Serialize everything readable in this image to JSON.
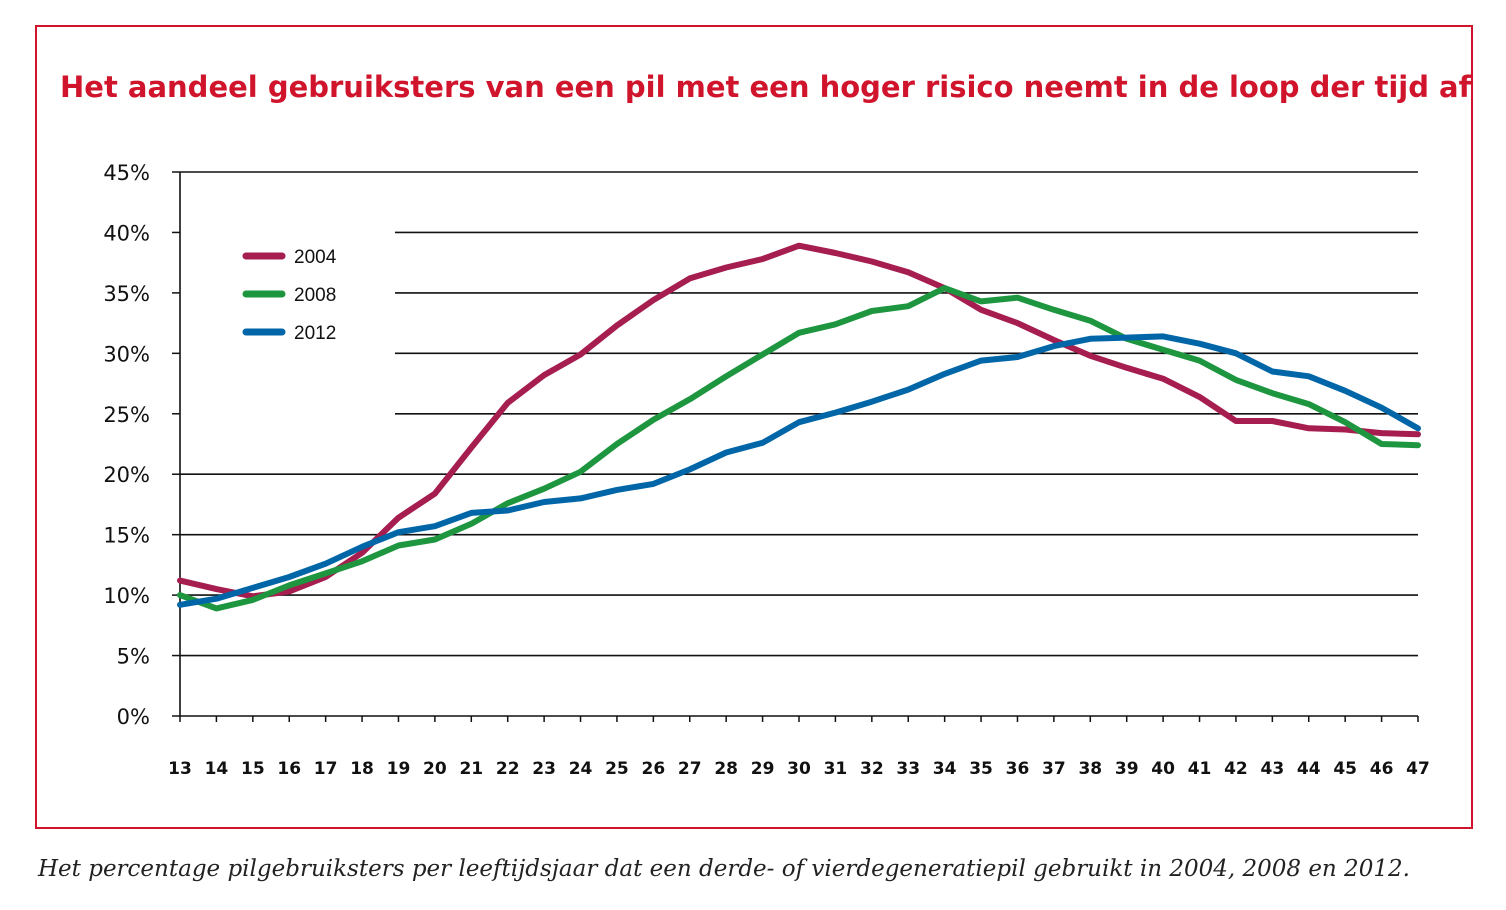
{
  "chart_data": {
    "type": "line",
    "title": "Het aandeel gebruiksters van een pil met een hoger risico neemt in de loop der tijd af",
    "caption": "Het percentage pilgebruiksters per leeftijdsjaar dat een derde- of vierdegeneratiepil gebruikt in 2004, 2008 en 2012.",
    "x": [
      13,
      14,
      15,
      16,
      17,
      18,
      19,
      20,
      21,
      22,
      23,
      24,
      25,
      26,
      27,
      28,
      29,
      30,
      31,
      32,
      33,
      34,
      35,
      36,
      37,
      38,
      39,
      40,
      41,
      42,
      43,
      44,
      45,
      46,
      47
    ],
    "ylim": [
      0,
      45
    ],
    "yticks": [
      "0%",
      "5%",
      "10%",
      "15%",
      "20%",
      "25%",
      "30%",
      "35%",
      "40%",
      "45%"
    ],
    "legend_position": "top-left",
    "grid": true,
    "series": [
      {
        "name": "2004",
        "color": "#a61d4f",
        "values": [
          11.2,
          10.5,
          9.9,
          10.3,
          11.5,
          13.5,
          16.4,
          18.4,
          22.2,
          25.9,
          28.2,
          29.9,
          32.3,
          34.4,
          36.2,
          37.1,
          37.8,
          38.9,
          38.3,
          37.6,
          36.7,
          35.4,
          33.6,
          32.5,
          31.1,
          29.8,
          28.8,
          27.9,
          26.4,
          24.4,
          24.4,
          23.8,
          23.7,
          23.4,
          23.3
        ]
      },
      {
        "name": "2008",
        "color": "#1e9640",
        "values": [
          10.0,
          8.9,
          9.6,
          10.8,
          11.8,
          12.8,
          14.1,
          14.6,
          15.9,
          17.6,
          18.8,
          20.2,
          22.5,
          24.5,
          26.2,
          28.1,
          29.9,
          31.7,
          32.4,
          33.5,
          33.9,
          35.4,
          34.3,
          34.6,
          33.6,
          32.7,
          31.2,
          30.3,
          29.4,
          27.8,
          26.7,
          25.8,
          24.3,
          22.5,
          22.4
        ]
      },
      {
        "name": "2012",
        "color": "#0066a8",
        "values": [
          9.2,
          9.7,
          10.6,
          11.5,
          12.6,
          14.0,
          15.2,
          15.7,
          16.8,
          17.0,
          17.7,
          18.0,
          18.7,
          19.2,
          20.4,
          21.8,
          22.6,
          24.3,
          25.1,
          26.0,
          27.0,
          28.3,
          29.4,
          29.7,
          30.6,
          31.2,
          31.3,
          31.4,
          30.8,
          30.0,
          28.5,
          28.1,
          26.9,
          25.5,
          23.8
        ]
      }
    ]
  }
}
